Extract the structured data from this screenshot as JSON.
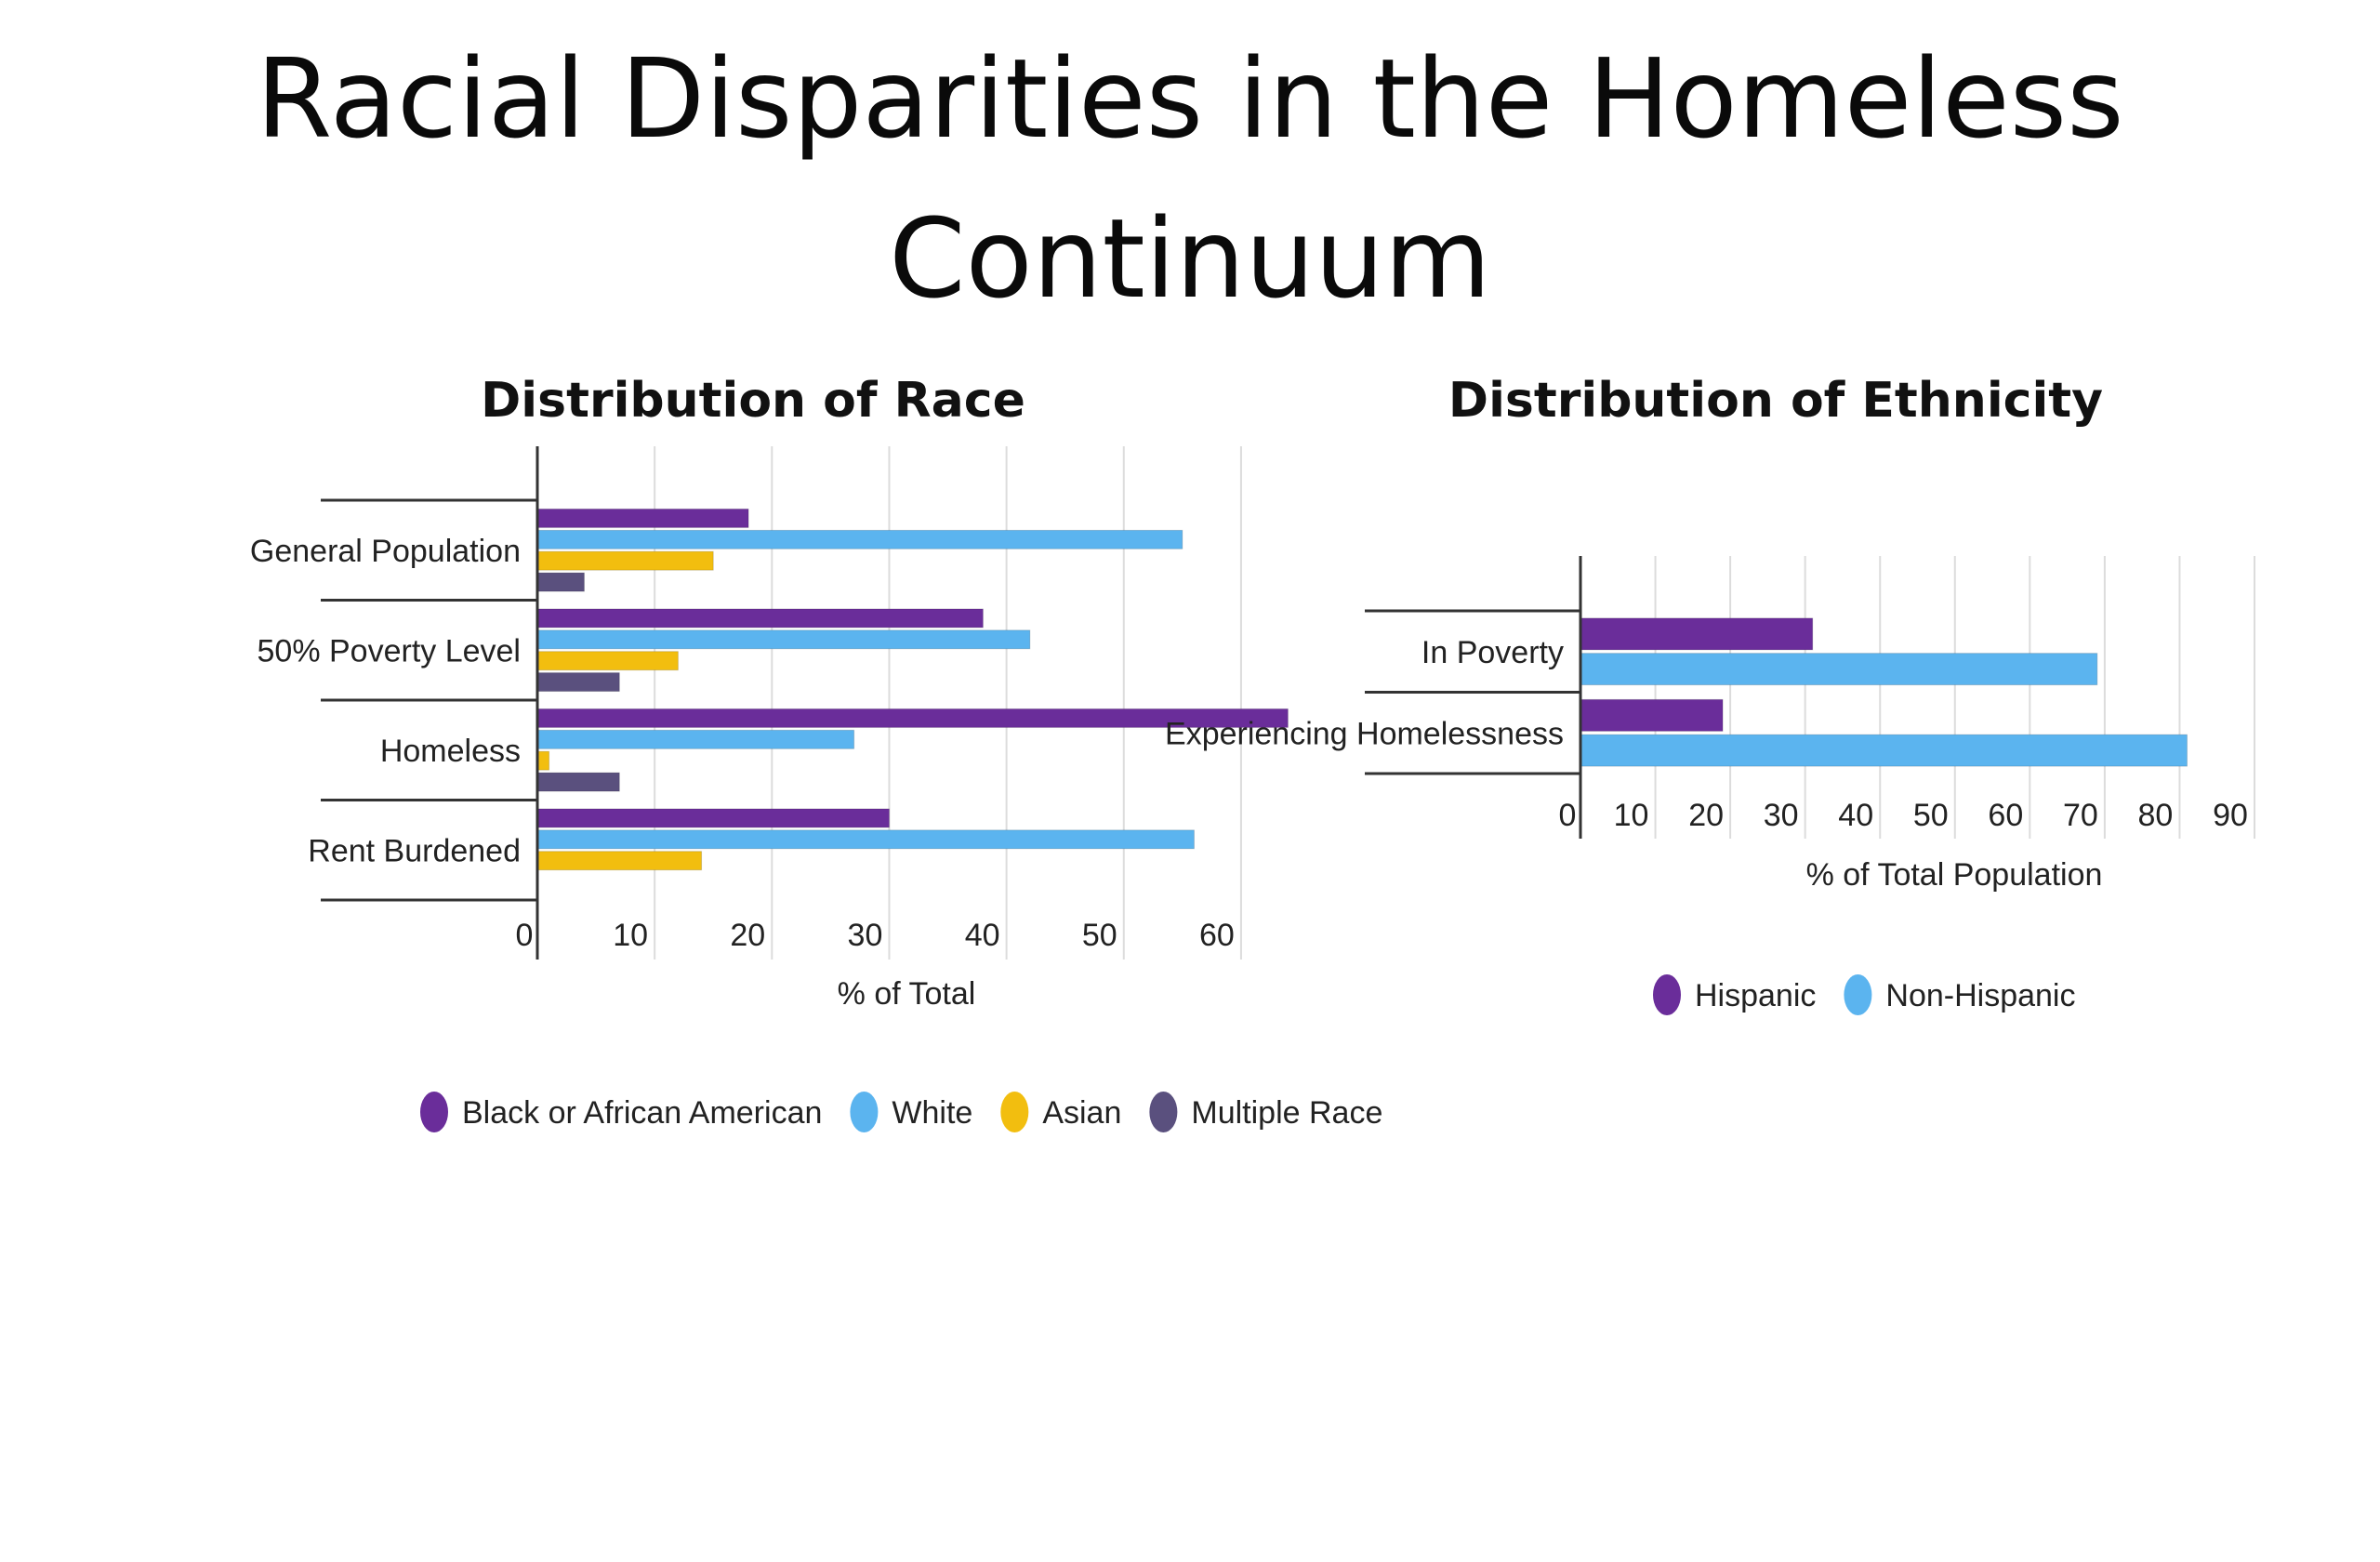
{
  "slide": {
    "title_line1": "Racial Disparities in the Homeless",
    "title_line2": "Continuum"
  },
  "chart_data": [
    {
      "type": "bar",
      "orientation": "horizontal",
      "title": "Distribution of Race",
      "categories": [
        "General Population",
        "50% Poverty Level",
        "Homeless",
        "Rent Burdened"
      ],
      "xlabel": "% of Total",
      "xlim": [
        0,
        65
      ],
      "xticks": [
        "0",
        "10",
        "20",
        "30",
        "40",
        "50",
        "60"
      ],
      "grid": true,
      "legend_position": "bottom",
      "series": [
        {
          "name": "Black or African American",
          "color": "#6a2d9a",
          "values": [
            18,
            38,
            64,
            30
          ]
        },
        {
          "name": "White",
          "color": "#5bb4ef",
          "values": [
            55,
            42,
            27,
            56
          ]
        },
        {
          "name": "Asian",
          "color": "#f2be0f",
          "values": [
            15,
            12,
            1,
            14
          ]
        },
        {
          "name": "Multiple Race",
          "color": "#5a507e",
          "values": [
            4,
            7,
            7,
            0
          ]
        }
      ]
    },
    {
      "type": "bar",
      "orientation": "horizontal",
      "title": "Distribution of Ethnicity",
      "categories": [
        "In Poverty",
        "Experiencing Homelessness"
      ],
      "xlabel": "% of Total Population",
      "xlim": [
        0,
        90
      ],
      "xticks": [
        "0",
        "10",
        "20",
        "30",
        "40",
        "50",
        "60",
        "70",
        "80",
        "90"
      ],
      "grid": true,
      "legend_position": "bottom",
      "series": [
        {
          "name": "Hispanic",
          "color": "#6a2d9a",
          "values": [
            31,
            19
          ]
        },
        {
          "name": "Non-Hispanic",
          "color": "#5bb4ef",
          "values": [
            69,
            81
          ]
        }
      ]
    }
  ]
}
